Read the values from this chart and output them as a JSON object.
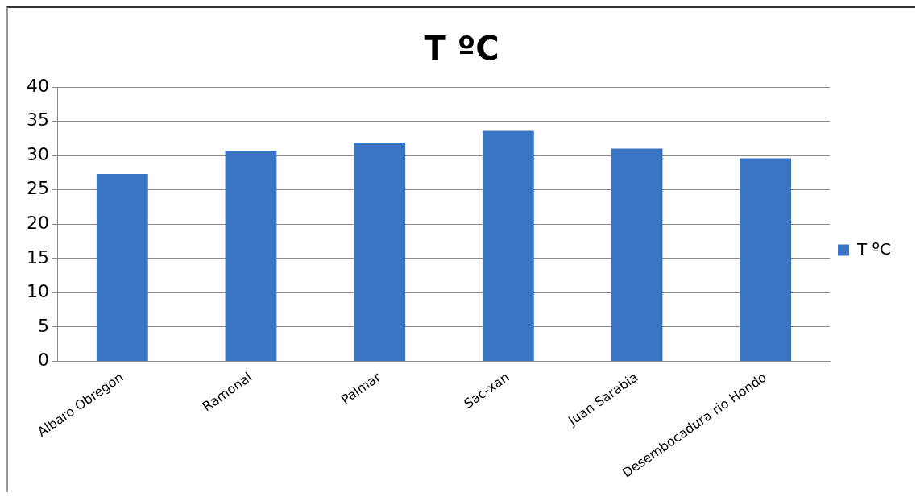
{
  "chart_data": {
    "type": "bar",
    "title": "T ºC",
    "categories": [
      "Albaro Obregon",
      "Ramonal",
      "Palmar",
      "Sac-xan",
      "Juan Sarabia",
      "Desembocadura rio Hondo"
    ],
    "series": [
      {
        "name": "T ºC",
        "color": "#3a75c4",
        "values": [
          27.3,
          30.7,
          31.9,
          33.6,
          31.0,
          29.6
        ]
      }
    ],
    "ylim": [
      0,
      40
    ],
    "yticks": [
      0,
      5,
      10,
      15,
      20,
      25,
      30,
      35,
      40
    ],
    "grid": "y",
    "legend": "right"
  }
}
